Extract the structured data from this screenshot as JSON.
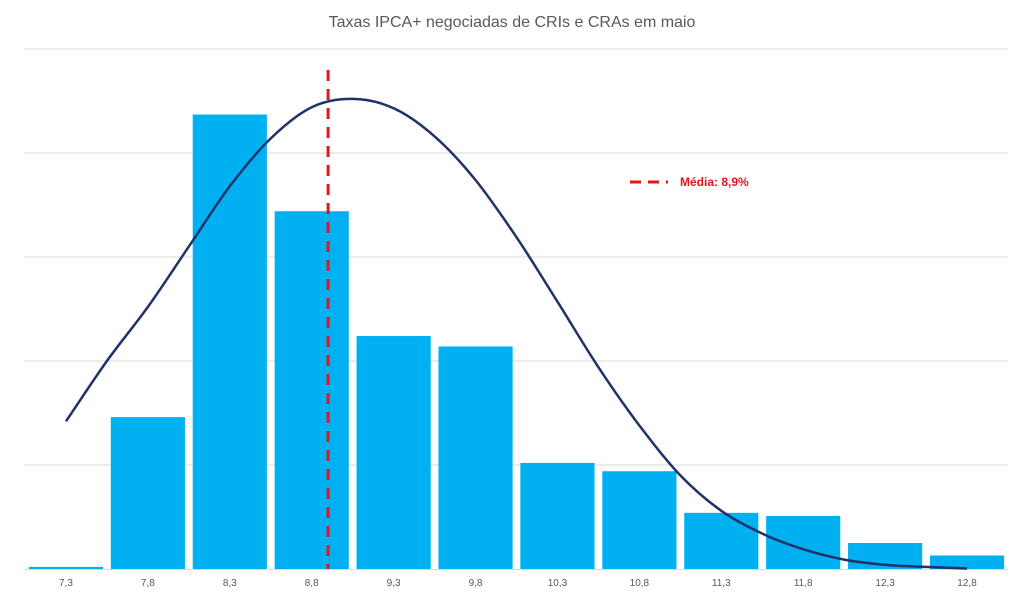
{
  "chart_data": {
    "type": "bar",
    "title": "Taxas IPCA+ negociadas de CRIs e CRAs em maio",
    "xlabel": "",
    "ylabel": "",
    "categories": [
      "7,3",
      "7,8",
      "8,3",
      "8,8",
      "9,3",
      "9,8",
      "10,3",
      "10,8",
      "11,3",
      "11,8",
      "12,3",
      "12,8"
    ],
    "values": [
      0.2,
      14.6,
      43.7,
      34.4,
      22.4,
      21.4,
      10.2,
      9.4,
      5.4,
      5.1,
      2.5,
      1.3
    ],
    "ylim": [
      0,
      50
    ],
    "y_gridlines": [
      10,
      20,
      30,
      40,
      50
    ],
    "grid": true,
    "bar_color": "#00b0f0",
    "curve": {
      "type": "line",
      "color": "#1f3269",
      "points": [
        {
          "x": 7.3,
          "y": 14.2
        },
        {
          "x": 7.55,
          "y": 20.0
        },
        {
          "x": 7.8,
          "y": 25.2
        },
        {
          "x": 8.05,
          "y": 31.0
        },
        {
          "x": 8.3,
          "y": 36.8
        },
        {
          "x": 8.55,
          "y": 41.4
        },
        {
          "x": 8.8,
          "y": 44.4
        },
        {
          "x": 9.05,
          "y": 45.2
        },
        {
          "x": 9.3,
          "y": 44.3
        },
        {
          "x": 9.55,
          "y": 41.6
        },
        {
          "x": 9.8,
          "y": 37.4
        },
        {
          "x": 10.05,
          "y": 31.9
        },
        {
          "x": 10.3,
          "y": 25.7
        },
        {
          "x": 10.55,
          "y": 19.4
        },
        {
          "x": 10.8,
          "y": 13.8
        },
        {
          "x": 11.05,
          "y": 9.0
        },
        {
          "x": 11.3,
          "y": 5.6
        },
        {
          "x": 11.55,
          "y": 3.4
        },
        {
          "x": 11.8,
          "y": 1.9
        },
        {
          "x": 12.05,
          "y": 0.9
        },
        {
          "x": 12.3,
          "y": 0.4
        },
        {
          "x": 12.55,
          "y": 0.2
        },
        {
          "x": 12.8,
          "y": 0.05
        }
      ]
    },
    "mean_line": {
      "value": 8.9,
      "color": "#e8131b",
      "label": "Média: 8,9%"
    },
    "legend": {
      "position": "top-right",
      "entries": [
        "Média: 8,9%"
      ]
    }
  }
}
